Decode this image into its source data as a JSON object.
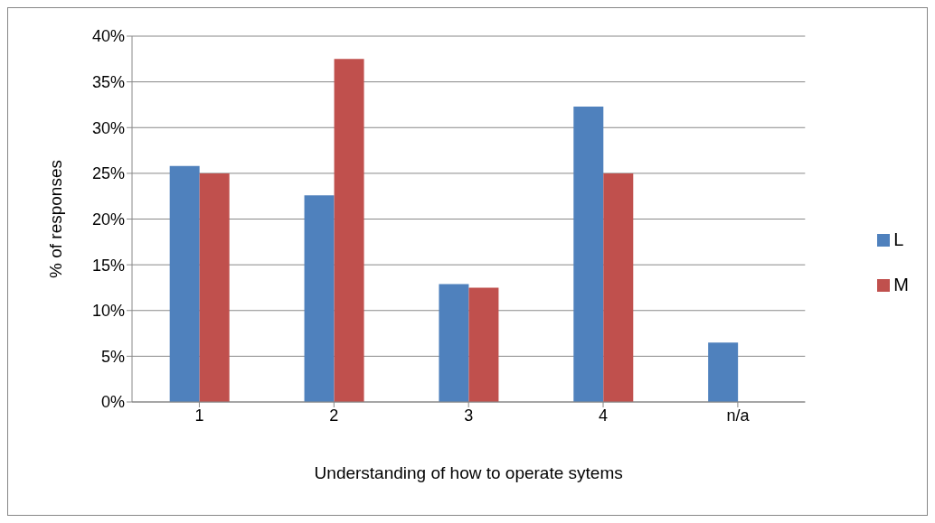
{
  "chart_data": {
    "type": "bar",
    "xlabel": "Understanding of how to operate sytems",
    "ylabel": "% of responses",
    "categories": [
      "1",
      "2",
      "3",
      "4",
      "n/a"
    ],
    "series": [
      {
        "name": "L",
        "color": "#4f81bd",
        "values": [
          25.8,
          22.6,
          12.9,
          32.3,
          6.5
        ]
      },
      {
        "name": "M",
        "color": "#c0504d",
        "values": [
          25,
          37.5,
          12.5,
          25,
          0
        ]
      }
    ],
    "ylim": [
      0,
      40
    ],
    "yticks": [
      {
        "value": 0,
        "label": "0%"
      },
      {
        "value": 5,
        "label": "5%"
      },
      {
        "value": 10,
        "label": "10%"
      },
      {
        "value": 15,
        "label": "15%"
      },
      {
        "value": 20,
        "label": "20%"
      },
      {
        "value": 25,
        "label": "25%"
      },
      {
        "value": 30,
        "label": "30%"
      },
      {
        "value": 35,
        "label": "35%"
      },
      {
        "value": 40,
        "label": "40%"
      }
    ],
    "grid": "y",
    "legend": "right"
  }
}
